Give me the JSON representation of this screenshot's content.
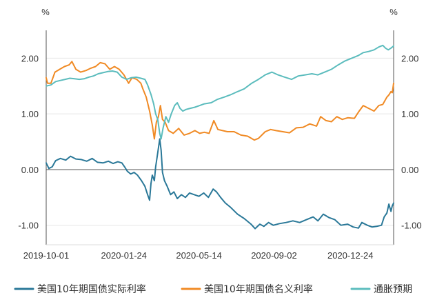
{
  "chart_data": {
    "type": "line",
    "y_unit_left": "%",
    "y_unit_right": "%",
    "ylim": [
      -1.35,
      2.5
    ],
    "yticks": [
      2.0,
      1.0,
      0.0,
      -1.0
    ],
    "ytick_labels": [
      "2.00",
      "1.00",
      "0.00",
      "-1.00"
    ],
    "x_start": "2019-10-01",
    "x_end": "2021-02-26",
    "xticks": [
      {
        "date": "2019-10-01",
        "label": "2019-10-01"
      },
      {
        "date": "2020-01-24",
        "label": "2020-01-24"
      },
      {
        "date": "2020-05-14",
        "label": "2020-05-14"
      },
      {
        "date": "2020-09-02",
        "label": "2020-09-02"
      },
      {
        "date": "2020-12-24",
        "label": "2020-12-24"
      }
    ],
    "grid": true,
    "legend_position": "bottom",
    "series": [
      {
        "name": "美国10年期国债实际利率",
        "color": "#2a7898",
        "points": [
          [
            "2019-10-01",
            0.12
          ],
          [
            "2019-10-05",
            0.02
          ],
          [
            "2019-10-10",
            0.05
          ],
          [
            "2019-10-15",
            0.16
          ],
          [
            "2019-10-22",
            0.2
          ],
          [
            "2019-10-30",
            0.17
          ],
          [
            "2019-11-06",
            0.24
          ],
          [
            "2019-11-14",
            0.19
          ],
          [
            "2019-11-22",
            0.18
          ],
          [
            "2019-11-30",
            0.15
          ],
          [
            "2019-12-08",
            0.2
          ],
          [
            "2019-12-16",
            0.13
          ],
          [
            "2019-12-24",
            0.12
          ],
          [
            "2020-01-01",
            0.15
          ],
          [
            "2020-01-08",
            0.11
          ],
          [
            "2020-01-15",
            0.14
          ],
          [
            "2020-01-21",
            0.12
          ],
          [
            "2020-01-25",
            0.05
          ],
          [
            "2020-01-29",
            -0.03
          ],
          [
            "2020-02-03",
            -0.08
          ],
          [
            "2020-02-08",
            -0.05
          ],
          [
            "2020-02-13",
            -0.1
          ],
          [
            "2020-02-19",
            -0.2
          ],
          [
            "2020-02-24",
            -0.3
          ],
          [
            "2020-02-28",
            -0.45
          ],
          [
            "2020-03-02",
            -0.55
          ],
          [
            "2020-03-04",
            -0.25
          ],
          [
            "2020-03-06",
            -0.1
          ],
          [
            "2020-03-09",
            -0.2
          ],
          [
            "2020-03-11",
            0.05
          ],
          [
            "2020-03-14",
            0.3
          ],
          [
            "2020-03-17",
            0.55
          ],
          [
            "2020-03-19",
            0.35
          ],
          [
            "2020-03-21",
            -0.05
          ],
          [
            "2020-03-24",
            -0.2
          ],
          [
            "2020-03-28",
            -0.3
          ],
          [
            "2020-04-02",
            -0.45
          ],
          [
            "2020-04-07",
            -0.4
          ],
          [
            "2020-04-12",
            -0.52
          ],
          [
            "2020-04-18",
            -0.45
          ],
          [
            "2020-04-24",
            -0.5
          ],
          [
            "2020-04-30",
            -0.42
          ],
          [
            "2020-05-07",
            -0.45
          ],
          [
            "2020-05-14",
            -0.48
          ],
          [
            "2020-05-21",
            -0.42
          ],
          [
            "2020-05-28",
            -0.5
          ],
          [
            "2020-06-04",
            -0.35
          ],
          [
            "2020-06-09",
            -0.4
          ],
          [
            "2020-06-15",
            -0.5
          ],
          [
            "2020-06-22",
            -0.6
          ],
          [
            "2020-06-30",
            -0.68
          ],
          [
            "2020-07-10",
            -0.8
          ],
          [
            "2020-07-20",
            -0.88
          ],
          [
            "2020-07-30",
            -0.98
          ],
          [
            "2020-08-05",
            -1.06
          ],
          [
            "2020-08-12",
            -0.98
          ],
          [
            "2020-08-18",
            -1.02
          ],
          [
            "2020-08-25",
            -0.95
          ],
          [
            "2020-09-01",
            -1.0
          ],
          [
            "2020-09-10",
            -0.97
          ],
          [
            "2020-09-20",
            -0.95
          ],
          [
            "2020-09-30",
            -0.92
          ],
          [
            "2020-10-10",
            -0.95
          ],
          [
            "2020-10-20",
            -0.9
          ],
          [
            "2020-10-30",
            -0.85
          ],
          [
            "2020-11-06",
            -0.92
          ],
          [
            "2020-11-14",
            -0.8
          ],
          [
            "2020-11-22",
            -0.86
          ],
          [
            "2020-12-01",
            -0.9
          ],
          [
            "2020-12-10",
            -1.0
          ],
          [
            "2020-12-20",
            -0.98
          ],
          [
            "2020-12-28",
            -1.03
          ],
          [
            "2021-01-05",
            -1.05
          ],
          [
            "2021-01-10",
            -0.95
          ],
          [
            "2021-01-18",
            -1.0
          ],
          [
            "2021-01-25",
            -1.03
          ],
          [
            "2021-02-01",
            -1.02
          ],
          [
            "2021-02-08",
            -1.0
          ],
          [
            "2021-02-12",
            -0.85
          ],
          [
            "2021-02-16",
            -0.78
          ],
          [
            "2021-02-19",
            -0.62
          ],
          [
            "2021-02-22",
            -0.75
          ],
          [
            "2021-02-24",
            -0.65
          ],
          [
            "2021-02-26",
            -0.6
          ]
        ]
      },
      {
        "name": "美国10年期国债名义利率",
        "color": "#f08a24",
        "points": [
          [
            "2019-10-01",
            1.65
          ],
          [
            "2019-10-03",
            1.55
          ],
          [
            "2019-10-08",
            1.55
          ],
          [
            "2019-10-14",
            1.75
          ],
          [
            "2019-10-21",
            1.8
          ],
          [
            "2019-10-28",
            1.85
          ],
          [
            "2019-11-04",
            1.88
          ],
          [
            "2019-11-08",
            1.94
          ],
          [
            "2019-11-14",
            1.8
          ],
          [
            "2019-11-21",
            1.75
          ],
          [
            "2019-11-29",
            1.78
          ],
          [
            "2019-12-06",
            1.82
          ],
          [
            "2019-12-13",
            1.85
          ],
          [
            "2019-12-20",
            1.92
          ],
          [
            "2019-12-27",
            1.9
          ],
          [
            "2020-01-03",
            1.8
          ],
          [
            "2020-01-10",
            1.85
          ],
          [
            "2020-01-17",
            1.8
          ],
          [
            "2020-01-24",
            1.7
          ],
          [
            "2020-01-31",
            1.55
          ],
          [
            "2020-02-05",
            1.65
          ],
          [
            "2020-02-12",
            1.62
          ],
          [
            "2020-02-18",
            1.55
          ],
          [
            "2020-02-21",
            1.45
          ],
          [
            "2020-02-26",
            1.3
          ],
          [
            "2020-03-02",
            1.05
          ],
          [
            "2020-03-06",
            0.8
          ],
          [
            "2020-03-09",
            0.55
          ],
          [
            "2020-03-12",
            0.85
          ],
          [
            "2020-03-15",
            0.95
          ],
          [
            "2020-03-18",
            1.15
          ],
          [
            "2020-03-21",
            0.9
          ],
          [
            "2020-03-25",
            0.85
          ],
          [
            "2020-03-30",
            0.7
          ],
          [
            "2020-04-06",
            0.65
          ],
          [
            "2020-04-14",
            0.74
          ],
          [
            "2020-04-22",
            0.62
          ],
          [
            "2020-04-30",
            0.65
          ],
          [
            "2020-05-08",
            0.7
          ],
          [
            "2020-05-15",
            0.65
          ],
          [
            "2020-05-22",
            0.67
          ],
          [
            "2020-05-29",
            0.65
          ],
          [
            "2020-06-05",
            0.88
          ],
          [
            "2020-06-11",
            0.72
          ],
          [
            "2020-06-18",
            0.7
          ],
          [
            "2020-06-25",
            0.68
          ],
          [
            "2020-07-05",
            0.68
          ],
          [
            "2020-07-15",
            0.62
          ],
          [
            "2020-07-25",
            0.6
          ],
          [
            "2020-08-04",
            0.53
          ],
          [
            "2020-08-10",
            0.56
          ],
          [
            "2020-08-20",
            0.68
          ],
          [
            "2020-08-28",
            0.72
          ],
          [
            "2020-09-05",
            0.7
          ],
          [
            "2020-09-15",
            0.68
          ],
          [
            "2020-09-25",
            0.66
          ],
          [
            "2020-10-05",
            0.75
          ],
          [
            "2020-10-15",
            0.76
          ],
          [
            "2020-10-25",
            0.82
          ],
          [
            "2020-11-04",
            0.78
          ],
          [
            "2020-11-10",
            0.95
          ],
          [
            "2020-11-18",
            0.88
          ],
          [
            "2020-11-26",
            0.86
          ],
          [
            "2020-12-04",
            0.95
          ],
          [
            "2020-12-12",
            0.9
          ],
          [
            "2020-12-20",
            0.93
          ],
          [
            "2020-12-30",
            0.92
          ],
          [
            "2021-01-06",
            1.05
          ],
          [
            "2021-01-12",
            1.15
          ],
          [
            "2021-01-20",
            1.1
          ],
          [
            "2021-01-28",
            1.05
          ],
          [
            "2021-02-04",
            1.15
          ],
          [
            "2021-02-10",
            1.17
          ],
          [
            "2021-02-16",
            1.3
          ],
          [
            "2021-02-19",
            1.34
          ],
          [
            "2021-02-22",
            1.4
          ],
          [
            "2021-02-24",
            1.38
          ],
          [
            "2021-02-26",
            1.55
          ]
        ]
      },
      {
        "name": "通胀预期",
        "color": "#5bbcbd",
        "points": [
          [
            "2019-10-01",
            1.5
          ],
          [
            "2019-10-08",
            1.52
          ],
          [
            "2019-10-15",
            1.58
          ],
          [
            "2019-10-22",
            1.6
          ],
          [
            "2019-10-29",
            1.62
          ],
          [
            "2019-11-05",
            1.64
          ],
          [
            "2019-11-12",
            1.63
          ],
          [
            "2019-11-19",
            1.62
          ],
          [
            "2019-11-26",
            1.63
          ],
          [
            "2019-12-03",
            1.66
          ],
          [
            "2019-12-10",
            1.68
          ],
          [
            "2019-12-17",
            1.72
          ],
          [
            "2019-12-24",
            1.74
          ],
          [
            "2019-12-31",
            1.76
          ],
          [
            "2020-01-07",
            1.77
          ],
          [
            "2020-01-14",
            1.75
          ],
          [
            "2020-01-21",
            1.66
          ],
          [
            "2020-01-28",
            1.62
          ],
          [
            "2020-02-04",
            1.65
          ],
          [
            "2020-02-11",
            1.66
          ],
          [
            "2020-02-18",
            1.64
          ],
          [
            "2020-02-24",
            1.62
          ],
          [
            "2020-02-28",
            1.52
          ],
          [
            "2020-03-04",
            1.35
          ],
          [
            "2020-03-08",
            1.18
          ],
          [
            "2020-03-11",
            1.0
          ],
          [
            "2020-03-14",
            0.9
          ],
          [
            "2020-03-17",
            0.65
          ],
          [
            "2020-03-19",
            0.55
          ],
          [
            "2020-03-22",
            0.75
          ],
          [
            "2020-03-26",
            0.95
          ],
          [
            "2020-03-30",
            0.85
          ],
          [
            "2020-04-03",
            1.0
          ],
          [
            "2020-04-08",
            1.15
          ],
          [
            "2020-04-12",
            1.2
          ],
          [
            "2020-04-16",
            1.1
          ],
          [
            "2020-04-20",
            1.05
          ],
          [
            "2020-04-25",
            1.08
          ],
          [
            "2020-05-01",
            1.1
          ],
          [
            "2020-05-08",
            1.12
          ],
          [
            "2020-05-15",
            1.15
          ],
          [
            "2020-05-22",
            1.18
          ],
          [
            "2020-06-01",
            1.2
          ],
          [
            "2020-06-10",
            1.26
          ],
          [
            "2020-06-20",
            1.3
          ],
          [
            "2020-07-01",
            1.35
          ],
          [
            "2020-07-10",
            1.4
          ],
          [
            "2020-07-20",
            1.45
          ],
          [
            "2020-07-31",
            1.55
          ],
          [
            "2020-08-10",
            1.62
          ],
          [
            "2020-08-20",
            1.7
          ],
          [
            "2020-08-30",
            1.75
          ],
          [
            "2020-09-08",
            1.7
          ],
          [
            "2020-09-18",
            1.66
          ],
          [
            "2020-09-28",
            1.62
          ],
          [
            "2020-10-08",
            1.68
          ],
          [
            "2020-10-18",
            1.7
          ],
          [
            "2020-10-28",
            1.72
          ],
          [
            "2020-11-06",
            1.7
          ],
          [
            "2020-11-16",
            1.75
          ],
          [
            "2020-11-26",
            1.8
          ],
          [
            "2020-12-06",
            1.88
          ],
          [
            "2020-12-16",
            1.95
          ],
          [
            "2020-12-26",
            2.0
          ],
          [
            "2021-01-05",
            2.05
          ],
          [
            "2021-01-12",
            2.1
          ],
          [
            "2021-01-20",
            2.12
          ],
          [
            "2021-01-28",
            2.15
          ],
          [
            "2021-02-04",
            2.2
          ],
          [
            "2021-02-10",
            2.23
          ],
          [
            "2021-02-14",
            2.18
          ],
          [
            "2021-02-18",
            2.15
          ],
          [
            "2021-02-22",
            2.18
          ],
          [
            "2021-02-26",
            2.22
          ]
        ]
      }
    ]
  }
}
